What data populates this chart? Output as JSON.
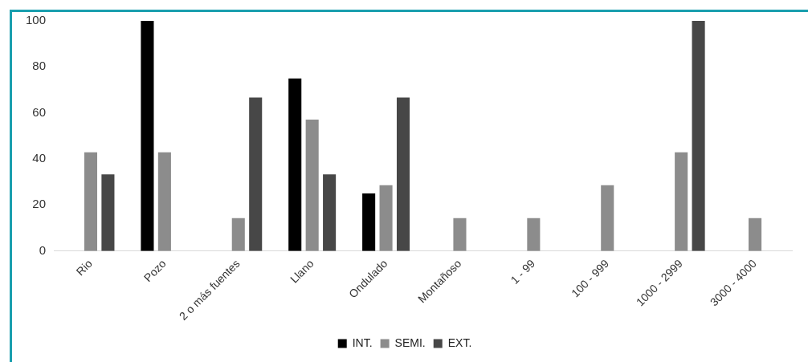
{
  "chart_data": {
    "type": "bar",
    "categories": [
      "Rio",
      "Pozo",
      "2 o más fuentes",
      "Llano",
      "Ondulado",
      "Montañoso",
      "1 - 99",
      "100 - 999",
      "1000 - 2999",
      "3000 - 4000"
    ],
    "series": [
      {
        "name": "INT.",
        "color": "#000000",
        "values": [
          0,
          100,
          0,
          75,
          25,
          0,
          0,
          0,
          0,
          0
        ]
      },
      {
        "name": "SEMI.",
        "color": "#8c8c8c",
        "values": [
          42.9,
          42.9,
          14.3,
          57.1,
          28.6,
          14.3,
          14.3,
          28.6,
          42.9,
          14.3
        ]
      },
      {
        "name": "EXT.",
        "color": "#474747",
        "values": [
          33.3,
          0,
          66.7,
          33.3,
          66.7,
          0,
          0,
          0,
          100,
          0
        ]
      }
    ],
    "ylim": [
      0,
      100
    ],
    "yticks": [
      0,
      20,
      40,
      60,
      80,
      100
    ],
    "grid": false,
    "legend": "bottom"
  }
}
